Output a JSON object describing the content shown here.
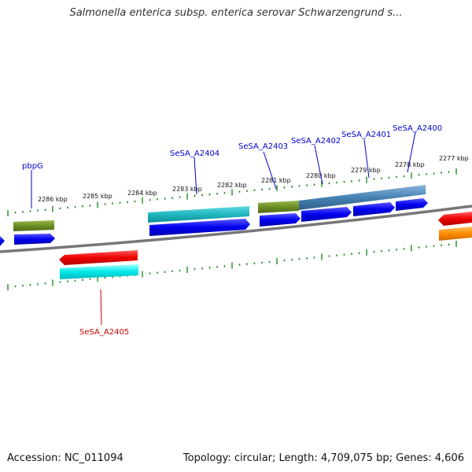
{
  "title": "Salmonella enterica subsp. enterica serovar Schwarzengrund s...",
  "footer": {
    "accession": "Accession: NC_011094",
    "info": "Topology: circular; Length: 4,709,075 bp; Genes: 4,606"
  },
  "ticks": [
    "2286 kbp",
    "2285 kbp",
    "2284 kbp",
    "2283 kbp",
    "2282 kbp",
    "2281 kbp",
    "2280 kbp",
    "2279 kbp",
    "2278 kbp",
    "2277 kbp"
  ],
  "gene_labels": {
    "pbpG": "pbpG",
    "a2404": "SeSA_A2404",
    "a2403": "SeSA_A2403",
    "a2402": "SeSA_A2402",
    "a2401": "SeSA_A2401",
    "a2400": "SeSA_A2400",
    "a2405": "SeSA_A2405"
  },
  "colors": {
    "blue": "#0000ee",
    "red": "#ee0000",
    "cyan": "#00e0e0",
    "teal": "#20b8c0",
    "olive": "#6b8e23",
    "steelblue": "#4682b4",
    "orange": "#ff8c00",
    "tick_green": "#228b22",
    "label_blue": "#0000cc",
    "label_red": "#cc0000"
  }
}
